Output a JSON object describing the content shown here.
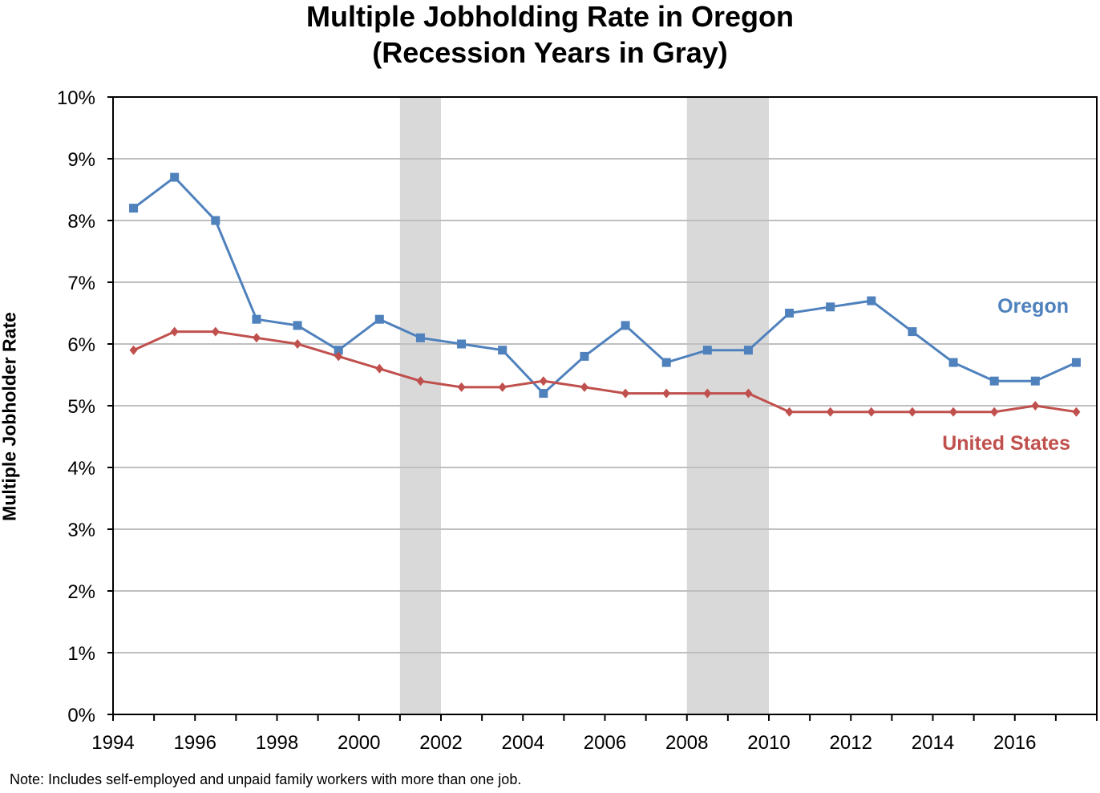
{
  "title_line1": "Multiple Jobholding Rate in Oregon",
  "title_line2": "(Recession Years in Gray)",
  "note": "Note: Includes self-employed and unpaid family workers with more than one job.",
  "chart_data": {
    "type": "line",
    "title": "Multiple Jobholding Rate in Oregon (Recession Years in Gray)",
    "ylabel": "Multiple Jobholder Rate",
    "xlabel": "",
    "x": [
      1994,
      1995,
      1996,
      1997,
      1998,
      1999,
      2000,
      2001,
      2002,
      2003,
      2004,
      2005,
      2006,
      2007,
      2008,
      2009,
      2010,
      2011,
      2012,
      2013,
      2014,
      2015,
      2016,
      2017
    ],
    "x_tick_labels": [
      "1994",
      "1996",
      "1998",
      "2000",
      "2002",
      "2004",
      "2006",
      "2008",
      "2010",
      "2012",
      "2014",
      "2016"
    ],
    "y_tick_labels": [
      "0%",
      "1%",
      "2%",
      "3%",
      "4%",
      "5%",
      "6%",
      "7%",
      "8%",
      "9%",
      "10%"
    ],
    "ylim": [
      0,
      10
    ],
    "grid": true,
    "recessions": [
      [
        2001,
        2002
      ],
      [
        2008,
        2010
      ]
    ],
    "recession_color": "#d9d9d9",
    "series": [
      {
        "name": "Oregon",
        "color": "#4f81bd",
        "marker": "square",
        "values": [
          8.2,
          8.7,
          8.0,
          6.4,
          6.3,
          5.9,
          6.4,
          6.1,
          6.0,
          5.9,
          5.2,
          5.8,
          6.3,
          5.7,
          5.9,
          5.9,
          6.5,
          6.6,
          6.7,
          6.2,
          5.7,
          5.4,
          5.4,
          5.7
        ]
      },
      {
        "name": "United States",
        "color": "#c0504d",
        "marker": "diamond",
        "values": [
          5.9,
          6.2,
          6.2,
          6.1,
          6.0,
          5.8,
          5.6,
          5.4,
          5.3,
          5.3,
          5.4,
          5.3,
          5.2,
          5.2,
          5.2,
          5.2,
          4.9,
          4.9,
          4.9,
          4.9,
          4.9,
          4.9,
          5.0,
          4.9
        ]
      }
    ]
  }
}
